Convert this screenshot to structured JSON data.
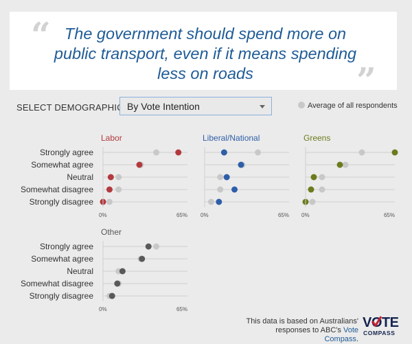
{
  "quote": {
    "text": "The government should spend more on public transport, even if it means spending less on roads"
  },
  "controls": {
    "demographics_label": "SELECT DEMOGRAPHICS:",
    "selected": "By Vote Intention",
    "legend_average": "Average of all respondents"
  },
  "footnote": {
    "prefix": "This data is based on Australians' responses to ABC's ",
    "link": "Vote Compass",
    "suffix": "."
  },
  "logo": {
    "vote": "VOTE",
    "compass": "COMPASS"
  },
  "colors": {
    "average": "#c8c8c8",
    "labor": "#b23a3e",
    "coalition": "#2e5ea8",
    "greens": "#6b7c1e",
    "other": "#595959",
    "accent": "#1f5b96"
  },
  "chart_data": [
    {
      "type": "scatter",
      "title": "Labor",
      "color": "#b23a3e",
      "categories": [
        "Strongly agree",
        "Somewhat agree",
        "Neutral",
        "Somewhat disagree",
        "Strongly disagree"
      ],
      "values": [
        58,
        28,
        6,
        5,
        0
      ],
      "average": [
        41,
        29,
        12,
        12,
        5
      ],
      "xlim": [
        0,
        65
      ],
      "xticks": [
        "0%",
        "65%"
      ],
      "show_labels": true
    },
    {
      "type": "scatter",
      "title": "Liberal/National",
      "color": "#2e5ea8",
      "categories": [
        "Strongly agree",
        "Somewhat agree",
        "Neutral",
        "Somewhat disagree",
        "Strongly disagree"
      ],
      "values": [
        15,
        28,
        17,
        23,
        11
      ],
      "average": [
        41,
        29,
        12,
        12,
        5
      ],
      "xlim": [
        0,
        65
      ],
      "xticks": [
        "0%",
        "65%"
      ],
      "show_labels": false
    },
    {
      "type": "scatter",
      "title": "Greens",
      "color": "#6b7c1e",
      "categories": [
        "Strongly agree",
        "Somewhat agree",
        "Neutral",
        "Somewhat disagree",
        "Strongly disagree"
      ],
      "values": [
        65,
        25,
        6,
        4,
        0
      ],
      "average": [
        41,
        29,
        12,
        12,
        5
      ],
      "xlim": [
        0,
        65
      ],
      "xticks": [
        "0%",
        "65%"
      ],
      "show_labels": false
    },
    {
      "type": "scatter",
      "title": "Other",
      "color": "#595959",
      "categories": [
        "Strongly agree",
        "Somewhat agree",
        "Neutral",
        "Somewhat disagree",
        "Strongly disagree"
      ],
      "values": [
        35,
        30,
        15,
        11,
        7
      ],
      "average": [
        41,
        29,
        12,
        12,
        5
      ],
      "xlim": [
        0,
        65
      ],
      "xticks": [
        "0%",
        "65%"
      ],
      "show_labels": true
    }
  ]
}
